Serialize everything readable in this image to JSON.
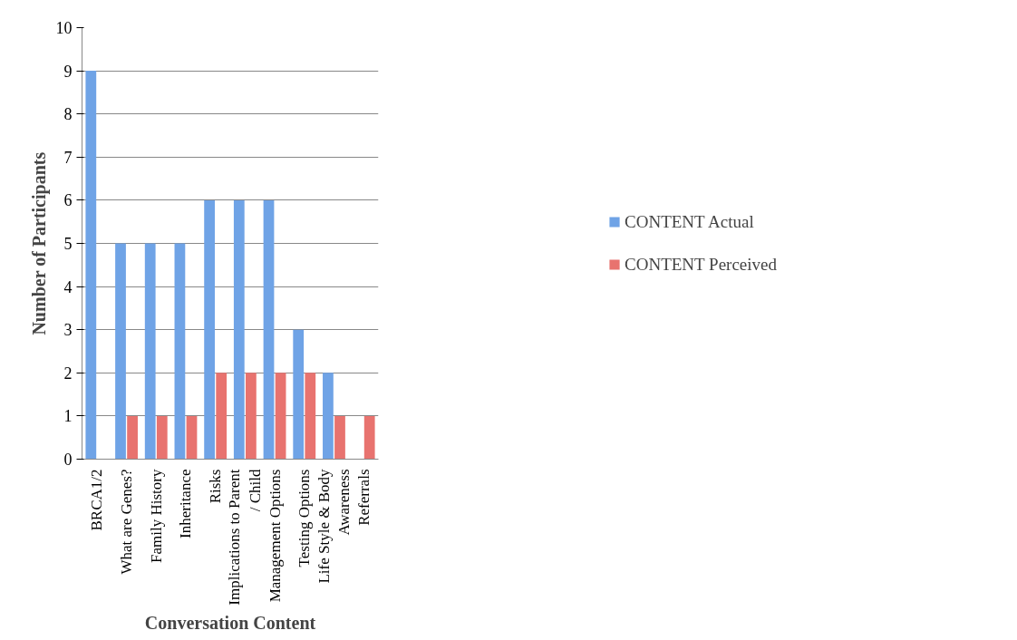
{
  "chart_data": {
    "type": "bar",
    "xlabel": "Conversation Content",
    "ylabel": "Number of Participants",
    "categories": [
      "BRCA1/2",
      "What are Genes?",
      "Family History",
      "Inheritance",
      "Risks",
      "Implications to Parent / Child",
      "Management Options",
      "Testing Options",
      "Life Style & Body Awareness",
      "Referrals"
    ],
    "series": [
      {
        "name": "CONTENT Actual",
        "color": "#6fa3e6",
        "values": [
          9,
          5,
          5,
          5,
          6,
          6,
          6,
          3,
          2,
          0
        ]
      },
      {
        "name": "CONTENT Perceived",
        "color": "#e8736f",
        "values": [
          0,
          1,
          1,
          1,
          2,
          2,
          2,
          2,
          1,
          1
        ]
      }
    ],
    "ylim": [
      0,
      10
    ],
    "yticks": [
      0,
      1,
      2,
      3,
      4,
      5,
      6,
      7,
      8,
      9,
      10
    ],
    "grid": "y",
    "legend": "right"
  }
}
